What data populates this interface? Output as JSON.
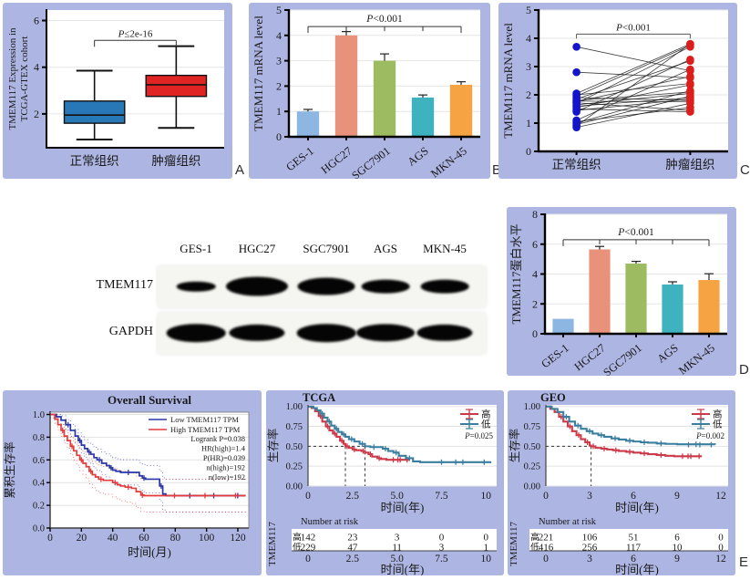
{
  "panel_letters": {
    "a": "A",
    "b": "B",
    "c": "C",
    "d": "D",
    "e": "E"
  },
  "colors": {
    "panel_bg": "#adb5e2",
    "bar_palette": [
      "#8db7e2",
      "#e8927c",
      "#9dbb61",
      "#3eb3bf",
      "#f6a343"
    ]
  },
  "blot": {
    "lanes": [
      "GES-1",
      "HGC27",
      "SGC7901",
      "AGS",
      "MKN-45"
    ],
    "rows": [
      {
        "label": "TMEM117",
        "intensities": [
          0.25,
          1.0,
          0.85,
          0.55,
          0.55
        ]
      },
      {
        "label": "GAPDH",
        "intensities": [
          0.9,
          0.8,
          0.9,
          0.88,
          0.8
        ]
      }
    ]
  },
  "chart_data": [
    {
      "panel": "A",
      "type": "box",
      "ylabel_lines": [
        "TMEM117 Expression in",
        "TCGA-GTEX cohort"
      ],
      "categories": [
        "正常组织",
        "肿瘤组织"
      ],
      "boxes": [
        {
          "low": 0.9,
          "q1": 1.6,
          "median": 1.95,
          "q3": 2.55,
          "high": 3.85,
          "color": "#2878b8"
        },
        {
          "low": 1.4,
          "q1": 2.75,
          "median": 3.25,
          "q3": 3.65,
          "high": 4.9,
          "color": "#e02424"
        }
      ],
      "ylim": [
        0.55,
        6.45
      ],
      "yticks": [
        2,
        4,
        6
      ],
      "sig": "P≤2e-16",
      "sig_y": 5.15
    },
    {
      "panel": "B",
      "type": "bar",
      "ylabel": "TMEM117 mRNA level",
      "categories": [
        "GES-1",
        "HGC27",
        "SGC7901",
        "AGS",
        "MKN-45"
      ],
      "values": [
        1.0,
        4.0,
        3.0,
        1.55,
        2.05
      ],
      "errors": [
        0.08,
        0.15,
        0.27,
        0.1,
        0.12
      ],
      "colors": [
        "#8db7e2",
        "#e8927c",
        "#9dbb61",
        "#3eb3bf",
        "#f6a343"
      ],
      "ylim": [
        0,
        5
      ],
      "yticks": [
        0,
        1,
        2,
        3,
        4,
        5
      ],
      "sig": "P<0.001",
      "sig_y": 4.35
    },
    {
      "panel": "C",
      "type": "paired",
      "ylabel": "TMEM117 mRNA level",
      "categories": [
        "正常组织",
        "肿瘤组织"
      ],
      "dot_colors": [
        "#1414cc",
        "#dd1c1c"
      ],
      "pairs": [
        [
          3.7,
          2.85
        ],
        [
          2.8,
          2.6
        ],
        [
          2.05,
          3.8
        ],
        [
          2.0,
          2.4
        ],
        [
          1.95,
          3.75
        ],
        [
          1.9,
          1.8
        ],
        [
          1.85,
          3.2
        ],
        [
          1.8,
          2.1
        ],
        [
          1.78,
          1.75
        ],
        [
          1.75,
          2.65
        ],
        [
          1.72,
          1.45
        ],
        [
          1.7,
          3.7
        ],
        [
          1.65,
          2.05
        ],
        [
          1.6,
          1.9
        ],
        [
          1.55,
          2.35
        ],
        [
          1.5,
          1.4
        ],
        [
          1.45,
          1.85
        ],
        [
          1.4,
          3.25
        ],
        [
          1.1,
          2.9
        ],
        [
          1.05,
          1.55
        ],
        [
          1.0,
          2.15
        ],
        [
          0.95,
          1.95
        ],
        [
          0.9,
          3.8
        ],
        [
          0.85,
          1.7
        ]
      ],
      "ylim": [
        0,
        5
      ],
      "yticks": [
        0,
        1,
        2,
        3,
        4,
        5
      ],
      "sig": "P<0.001",
      "sig_y": 4.15
    },
    {
      "panel": "D",
      "type": "bar",
      "ylabel": "TMEM117蛋白水平",
      "categories": [
        "GES-1",
        "HGC27",
        "SGC7901",
        "AGS",
        "MKN-45"
      ],
      "values": [
        1.0,
        5.65,
        4.7,
        3.3,
        3.6
      ],
      "errors": [
        0,
        0.2,
        0.15,
        0.18,
        0.42
      ],
      "colors": [
        "#8db7e2",
        "#e8927c",
        "#9dbb61",
        "#3eb3bf",
        "#f6a343"
      ],
      "ylim": [
        0,
        8
      ],
      "yticks": [
        0,
        2,
        4,
        6,
        8
      ],
      "sig": "P<0.001",
      "sig_y": 6.3
    },
    {
      "panel": "E1",
      "type": "km",
      "title": "Overall Survival",
      "title_align": "center",
      "ylabel": "累积生存率",
      "xlabel": "时间(月)",
      "xlim": [
        0,
        127
      ],
      "xticks": [
        0,
        20,
        40,
        60,
        80,
        100,
        120
      ],
      "yticks": [
        0,
        0.2,
        0.4,
        0.6,
        0.8,
        1.0
      ],
      "ytick_decimals": 1,
      "ci": true,
      "axis": true,
      "legend_lines": [
        {
          "label": "Low TMEM117 TPM",
          "color": "#2a35a8"
        },
        {
          "label": "High TMEM117 TPM",
          "color": "#e23b3b"
        }
      ],
      "annotations": [
        "Logrank P=0.038",
        "HR(high)=1.4",
        "P(HR)=0.039",
        "n(high)=192",
        "n(low)=192"
      ],
      "series": [
        {
          "name": "Low TMEM117 TPM",
          "color": "#2a35a8",
          "points": [
            [
              0,
              1
            ],
            [
              4,
              0.98
            ],
            [
              7,
              0.95
            ],
            [
              10,
              0.91
            ],
            [
              13,
              0.86
            ],
            [
              16,
              0.81
            ],
            [
              18,
              0.77
            ],
            [
              20,
              0.73
            ],
            [
              22,
              0.7
            ],
            [
              24,
              0.67
            ],
            [
              26,
              0.65
            ],
            [
              28,
              0.62
            ],
            [
              30,
              0.6
            ],
            [
              33,
              0.57
            ],
            [
              36,
              0.55
            ],
            [
              38,
              0.53
            ],
            [
              40,
              0.51
            ],
            [
              42,
              0.5
            ],
            [
              45,
              0.49
            ],
            [
              55,
              0.49
            ],
            [
              57,
              0.46
            ],
            [
              59,
              0.44
            ],
            [
              61,
              0.43
            ],
            [
              68,
              0.43
            ],
            [
              70,
              0.37
            ],
            [
              72,
              0.3
            ],
            [
              74,
              0.285
            ],
            [
              125,
              0.285
            ]
          ]
        },
        {
          "name": "High TMEM117 TPM",
          "color": "#e23b3b",
          "points": [
            [
              0,
              1
            ],
            [
              3,
              0.96
            ],
            [
              5,
              0.91
            ],
            [
              7,
              0.86
            ],
            [
              9,
              0.81
            ],
            [
              11,
              0.77
            ],
            [
              13,
              0.72
            ],
            [
              15,
              0.68
            ],
            [
              17,
              0.64
            ],
            [
              19,
              0.6
            ],
            [
              21,
              0.57
            ],
            [
              23,
              0.54
            ],
            [
              25,
              0.5
            ],
            [
              27,
              0.47
            ],
            [
              29,
              0.45
            ],
            [
              31,
              0.43
            ],
            [
              34,
              0.42
            ],
            [
              37,
              0.42
            ],
            [
              40,
              0.4
            ],
            [
              43,
              0.38
            ],
            [
              45,
              0.37
            ],
            [
              48,
              0.36
            ],
            [
              52,
              0.35
            ],
            [
              55,
              0.32
            ],
            [
              58,
              0.29
            ],
            [
              60,
              0.285
            ],
            [
              125,
              0.285
            ]
          ]
        }
      ]
    },
    {
      "panel": "E2",
      "type": "km",
      "title": "TCGA",
      "title_align": "left",
      "ylabel": "生存率",
      "xlabel": "时间(年)",
      "xlim": [
        0,
        10.6
      ],
      "xticks": [
        0,
        2.5,
        5,
        7.5,
        10
      ],
      "xtick_labels": [
        "0",
        "2.5",
        "5.0",
        "7.5",
        "10"
      ],
      "yticks": [
        0,
        0.25,
        0.5,
        0.75,
        1.0
      ],
      "ytick_decimals": 2,
      "legend_cross": [
        {
          "label": "高",
          "color": "#cc3a4a"
        },
        {
          "label": "低",
          "color": "#3b7fa0"
        }
      ],
      "p_label": "P=0.025",
      "median_lines": {
        "y": 0.5,
        "xs": [
          2.1,
          3.2
        ]
      },
      "series": [
        {
          "name": "高",
          "color": "#cc3a4a",
          "points": [
            [
              0,
              1
            ],
            [
              0.2,
              0.98
            ],
            [
              0.4,
              0.94
            ],
            [
              0.6,
              0.88
            ],
            [
              0.8,
              0.81
            ],
            [
              1.0,
              0.75
            ],
            [
              1.2,
              0.7
            ],
            [
              1.4,
              0.66
            ],
            [
              1.6,
              0.62
            ],
            [
              1.8,
              0.57
            ],
            [
              2.0,
              0.53
            ],
            [
              2.1,
              0.5
            ],
            [
              2.3,
              0.48
            ],
            [
              2.5,
              0.46
            ],
            [
              2.7,
              0.45
            ],
            [
              3.0,
              0.44
            ],
            [
              3.2,
              0.42
            ],
            [
              3.4,
              0.4
            ],
            [
              3.6,
              0.37
            ],
            [
              3.9,
              0.35
            ],
            [
              4.1,
              0.34
            ],
            [
              4.4,
              0.33
            ],
            [
              5.7,
              0.33
            ]
          ]
        },
        {
          "name": "低",
          "color": "#3b7fa0",
          "points": [
            [
              0,
              1
            ],
            [
              0.3,
              0.98
            ],
            [
              0.5,
              0.95
            ],
            [
              0.7,
              0.91
            ],
            [
              0.9,
              0.86
            ],
            [
              1.1,
              0.81
            ],
            [
              1.3,
              0.76
            ],
            [
              1.5,
              0.72
            ],
            [
              1.7,
              0.68
            ],
            [
              1.9,
              0.65
            ],
            [
              2.1,
              0.62
            ],
            [
              2.3,
              0.59
            ],
            [
              2.6,
              0.56
            ],
            [
              2.9,
              0.53
            ],
            [
              3.2,
              0.5
            ],
            [
              3.5,
              0.49
            ],
            [
              3.9,
              0.49
            ],
            [
              4.2,
              0.47
            ],
            [
              4.5,
              0.44
            ],
            [
              4.8,
              0.42
            ],
            [
              5.1,
              0.38
            ],
            [
              5.5,
              0.35
            ],
            [
              5.9,
              0.31
            ],
            [
              6.3,
              0.3
            ],
            [
              10.3,
              0.3
            ]
          ]
        }
      ],
      "risk_table": {
        "header": "Number at risk",
        "side_label": "TMEM117",
        "rows": [
          {
            "label": "高",
            "color": "#cc3a4a",
            "values": [
              142,
              23,
              3,
              0,
              0
            ]
          },
          {
            "label": "低",
            "color": "#3b7fa0",
            "values": [
              229,
              47,
              11,
              3,
              1
            ]
          }
        ]
      }
    },
    {
      "panel": "E3",
      "type": "km",
      "title": "GEO",
      "title_align": "left",
      "ylabel": "生存率",
      "xlabel": "时间(年)",
      "xlim": [
        0,
        12.5
      ],
      "xticks": [
        0,
        3,
        6,
        9,
        12
      ],
      "xtick_labels": [
        "0",
        "3",
        "6",
        "9",
        "12"
      ],
      "yticks": [
        0,
        0.25,
        0.5,
        0.75,
        1.0
      ],
      "ytick_decimals": 2,
      "legend_cross": [
        {
          "label": "高",
          "color": "#cc3a4a"
        },
        {
          "label": "低",
          "color": "#3b7fa0"
        }
      ],
      "p_label": "P=0.002",
      "median_lines": {
        "y": 0.5,
        "xs": [
          3.1
        ]
      },
      "series": [
        {
          "name": "高",
          "color": "#cc3a4a",
          "points": [
            [
              0,
              1
            ],
            [
              0.3,
              0.97
            ],
            [
              0.6,
              0.93
            ],
            [
              0.9,
              0.87
            ],
            [
              1.2,
              0.81
            ],
            [
              1.5,
              0.75
            ],
            [
              1.8,
              0.69
            ],
            [
              2.1,
              0.64
            ],
            [
              2.4,
              0.59
            ],
            [
              2.7,
              0.55
            ],
            [
              3.0,
              0.51
            ],
            [
              3.1,
              0.5
            ],
            [
              3.4,
              0.48
            ],
            [
              3.8,
              0.47
            ],
            [
              4.2,
              0.46
            ],
            [
              4.6,
              0.45
            ],
            [
              5.0,
              0.44
            ],
            [
              5.5,
              0.43
            ],
            [
              6.0,
              0.42
            ],
            [
              6.5,
              0.41
            ],
            [
              7.0,
              0.4
            ],
            [
              7.6,
              0.39
            ],
            [
              8.2,
              0.38
            ],
            [
              8.8,
              0.375
            ],
            [
              10.7,
              0.375
            ]
          ]
        },
        {
          "name": "低",
          "color": "#3b7fa0",
          "points": [
            [
              0,
              1
            ],
            [
              0.4,
              0.97
            ],
            [
              0.8,
              0.93
            ],
            [
              1.2,
              0.87
            ],
            [
              1.6,
              0.81
            ],
            [
              2.0,
              0.76
            ],
            [
              2.4,
              0.72
            ],
            [
              2.8,
              0.69
            ],
            [
              3.2,
              0.66
            ],
            [
              3.6,
              0.64
            ],
            [
              4.0,
              0.62
            ],
            [
              4.5,
              0.6
            ],
            [
              5.0,
              0.585
            ],
            [
              5.5,
              0.57
            ],
            [
              6.0,
              0.56
            ],
            [
              6.5,
              0.55
            ],
            [
              7.0,
              0.545
            ],
            [
              7.6,
              0.535
            ],
            [
              8.2,
              0.53
            ],
            [
              9.0,
              0.525
            ],
            [
              11.6,
              0.52
            ]
          ]
        }
      ],
      "risk_table": {
        "header": "Number at risk",
        "side_label": "TMEM117",
        "rows": [
          {
            "label": "高",
            "color": "#cc3a4a",
            "values": [
              221,
              106,
              51,
              6,
              0
            ]
          },
          {
            "label": "低",
            "color": "#3b7fa0",
            "values": [
              416,
              256,
              117,
              10,
              0
            ]
          }
        ]
      }
    }
  ]
}
